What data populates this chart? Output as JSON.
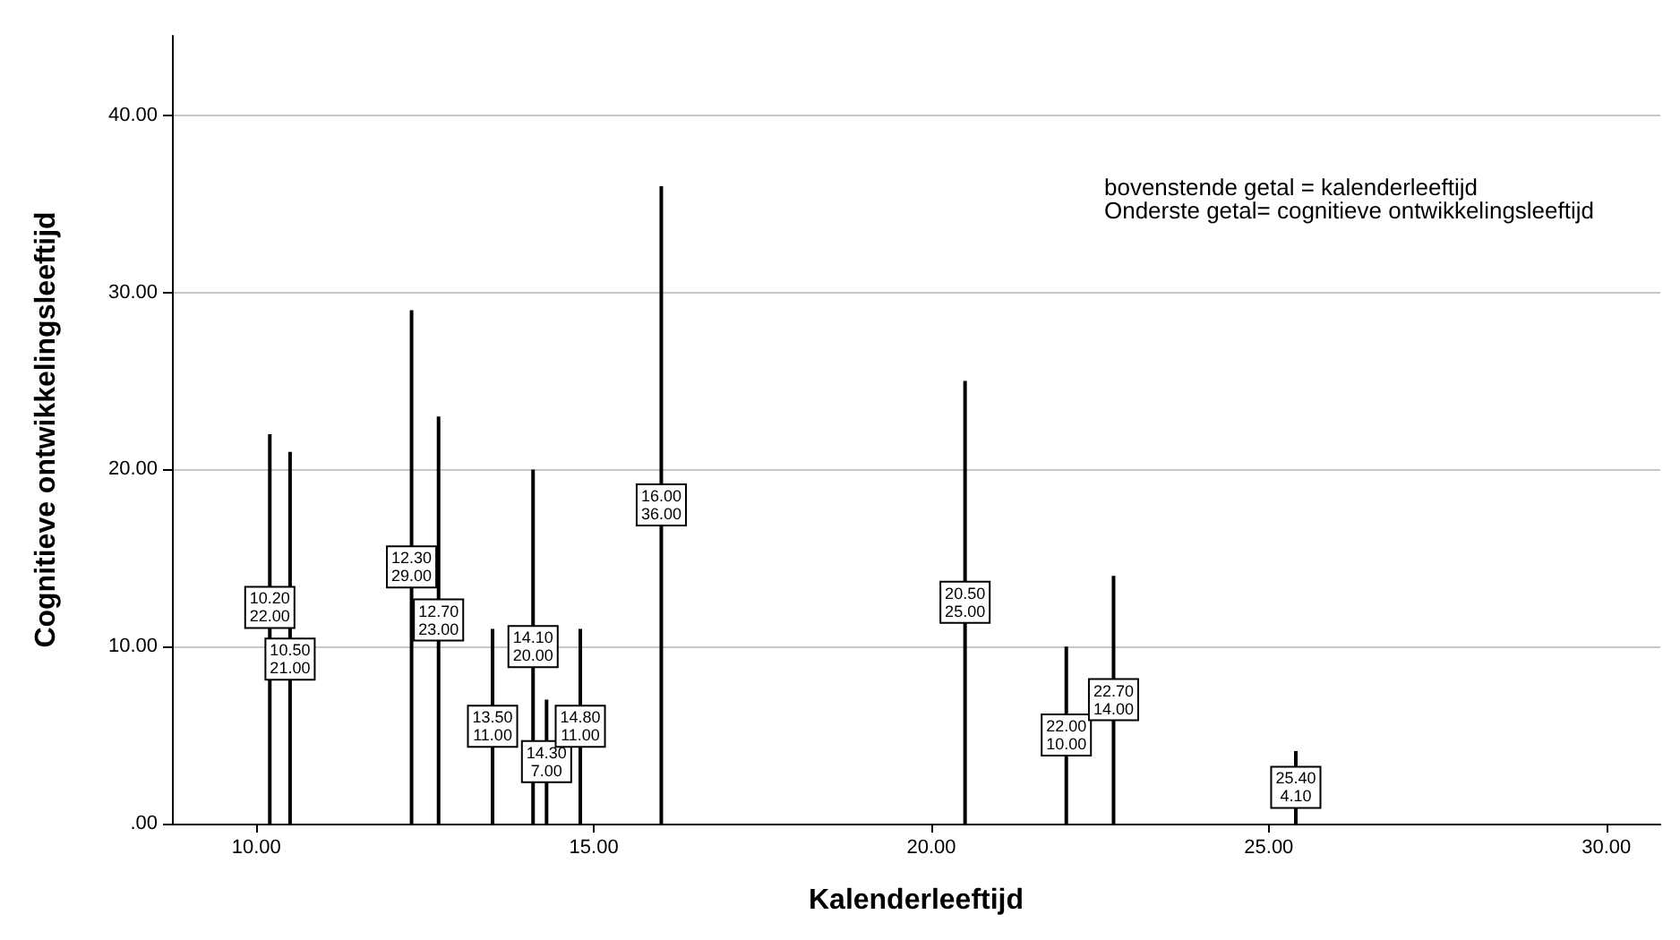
{
  "chart_data": {
    "type": "bar",
    "xlabel": "Kalenderleeftijd",
    "ylabel": "Cognitieve ontwikkelingsleeftijd",
    "x": [
      10.2,
      10.5,
      12.3,
      12.7,
      13.5,
      14.1,
      14.3,
      14.8,
      16,
      20.5,
      22,
      22.7,
      25.4
    ],
    "series": [
      {
        "color": "#000000",
        "values": [
          22,
          21,
          29,
          23,
          11,
          20,
          7,
          11,
          36,
          25,
          10,
          14,
          4.1
        ],
        "value_labels": [
          "10.20\n22.00",
          "10.50\n21.00",
          "12.30\n29.00",
          "12.70\n23.00",
          "13.50\n11.00",
          "14.10\n20.00",
          "14.30\n7.00",
          "14.80\n11.00",
          "16.00\n36.00",
          "20.50\n25.00",
          "22.00\n10.00",
          "22.70\n14.00",
          "25.40\n4.10"
        ]
      }
    ],
    "xlim": [
      8.75,
      30.8
    ],
    "xticks": [
      {
        "value": 10,
        "label": "10.00"
      },
      {
        "value": 15,
        "label": "15.00"
      },
      {
        "value": 20,
        "label": "20.00"
      },
      {
        "value": 25,
        "label": "25.00"
      },
      {
        "value": 30,
        "label": "30.00"
      }
    ],
    "ylim": [
      0,
      44.5
    ],
    "yticks": [
      {
        "value": 0,
        "label": ".00"
      },
      {
        "value": 10,
        "label": "10.00"
      },
      {
        "value": 20,
        "label": "20.00"
      },
      {
        "value": 30,
        "label": "30.00"
      },
      {
        "value": 40,
        "label": "40.00"
      }
    ],
    "grid": "y",
    "annotations": [
      "bovenstende getal = kalenderleeftijd\nOnderste getal= cognitieve ontwikkelingsleeftijd"
    ]
  }
}
